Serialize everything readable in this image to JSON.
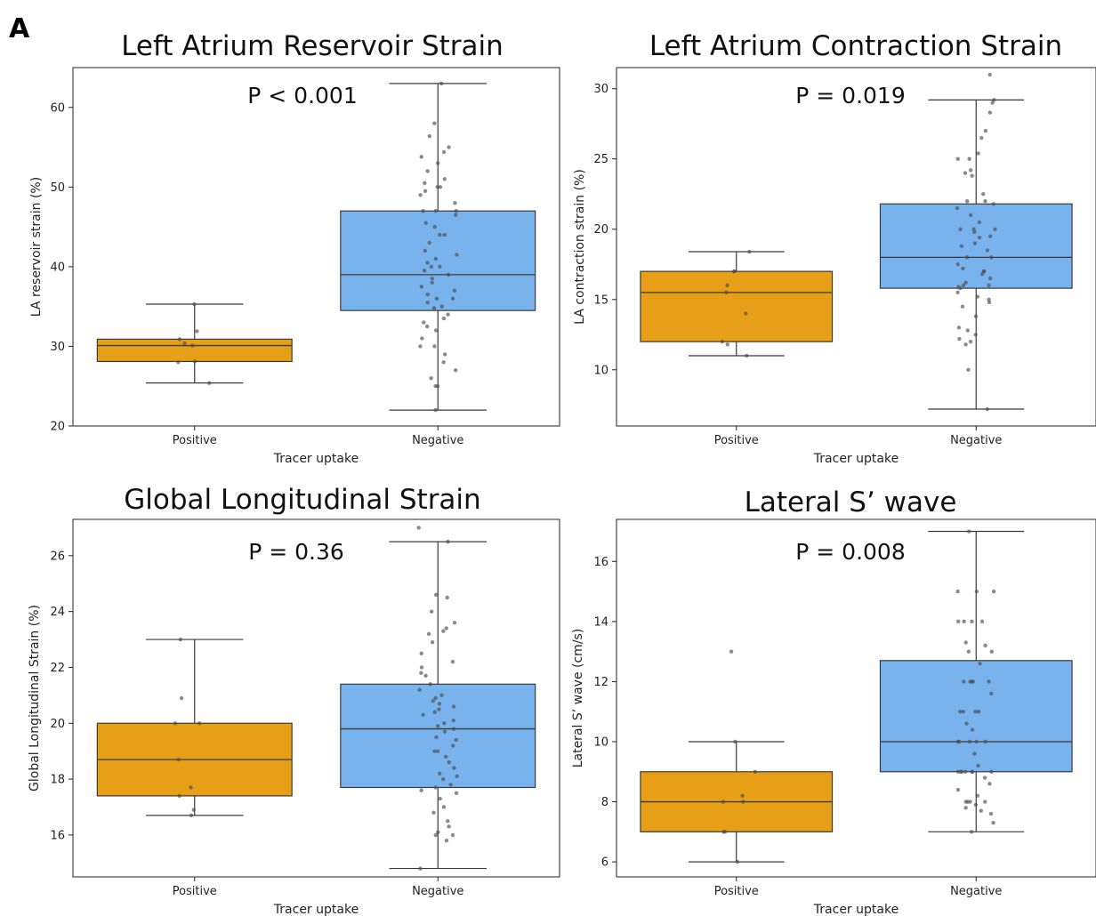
{
  "panel_label": "A",
  "colors": {
    "positive": "#E69F16",
    "negative": "#78B3EE",
    "point": "#4d4d4d",
    "line": "#3a3a3a"
  },
  "chart_data": [
    {
      "type": "box",
      "title": "Left Atrium Reservoir Strain",
      "annotation": "P < 0.001",
      "xlabel": "Tracer uptake",
      "ylabel": "LA reservoir strain (%)",
      "categories": [
        "Positive",
        "Negative"
      ],
      "ylim": [
        20,
        65
      ],
      "yticks": [
        20,
        30,
        40,
        50,
        60
      ],
      "boxes": [
        {
          "category": "Positive",
          "min": 25.4,
          "q1": 28.1,
          "median": 30.1,
          "q3": 30.9,
          "max": 35.3,
          "points": [
            35.3,
            31.9,
            30.9,
            30.4,
            30.1,
            28.1,
            28.0,
            25.4
          ]
        },
        {
          "category": "Negative",
          "min": 22.0,
          "q1": 34.5,
          "median": 39.0,
          "q3": 47.0,
          "max": 63.0,
          "points": [
            63.0,
            58.0,
            56.4,
            55.0,
            54.4,
            53.8,
            53.0,
            52.0,
            51.0,
            50.5,
            50.0,
            50.0,
            49.5,
            49.0,
            48.0,
            47.0,
            47.0,
            47.0,
            46.5,
            45.5,
            45.0,
            44.0,
            44.0,
            43.0,
            42.0,
            41.5,
            41.0,
            40.5,
            40.0,
            40.0,
            39.5,
            39.0,
            38.5,
            38.0,
            37.5,
            37.0,
            36.5,
            36.0,
            36.0,
            35.5,
            35.0,
            34.8,
            34.0,
            33.5,
            33.0,
            32.5,
            32.0,
            31.0,
            30.0,
            30.0,
            29.0,
            28.0,
            27.0,
            26.0,
            25.0,
            25.0,
            22.0
          ]
        }
      ]
    },
    {
      "type": "box",
      "title": "Left Atrium Contraction Strain",
      "annotation": "P = 0.019",
      "xlabel": "Tracer uptake",
      "ylabel": "LA contraction strain (%)",
      "categories": [
        "Positive",
        "Negative"
      ],
      "ylim": [
        6.0,
        31.5
      ],
      "yticks": [
        10,
        15,
        20,
        25,
        30
      ],
      "boxes": [
        {
          "category": "Positive",
          "min": 11.0,
          "q1": 12.0,
          "median": 15.5,
          "q3": 17.0,
          "max": 18.4,
          "points": [
            18.4,
            17.0,
            17.0,
            16.0,
            15.5,
            14.0,
            12.0,
            11.8,
            11.0
          ]
        },
        {
          "category": "Negative",
          "min": 7.2,
          "q1": 15.8,
          "median": 18.0,
          "q3": 21.8,
          "max": 29.2,
          "points": [
            31.0,
            29.2,
            29.0,
            28.3,
            27.0,
            26.5,
            25.4,
            25.0,
            25.0,
            24.2,
            24.0,
            23.8,
            22.5,
            22.0,
            22.0,
            21.8,
            21.5,
            21.0,
            20.5,
            20.0,
            20.0,
            20.0,
            19.8,
            19.5,
            19.4,
            19.0,
            18.8,
            18.5,
            18.0,
            18.0,
            17.5,
            17.2,
            17.0,
            17.0,
            16.8,
            16.5,
            16.2,
            16.0,
            16.0,
            15.9,
            15.8,
            15.5,
            15.2,
            15.0,
            14.8,
            14.5,
            13.8,
            13.0,
            12.8,
            12.5,
            12.2,
            12.0,
            11.8,
            10.0,
            7.2
          ]
        }
      ]
    },
    {
      "type": "box",
      "title": "Global Longitudinal Strain",
      "annotation": "P = 0.36",
      "xlabel": "Tracer uptake",
      "ylabel": "Global Longitudinal Strain (%)",
      "categories": [
        "Positive",
        "Negative"
      ],
      "ylim": [
        14.5,
        27.3
      ],
      "yticks": [
        16,
        18,
        20,
        22,
        24,
        26
      ],
      "boxes": [
        {
          "category": "Positive",
          "min": 16.7,
          "q1": 17.4,
          "median": 18.7,
          "q3": 20.0,
          "max": 23.0,
          "points": [
            23.0,
            20.9,
            20.0,
            20.0,
            18.7,
            17.7,
            17.4,
            16.9,
            16.7
          ]
        },
        {
          "category": "Negative",
          "min": 14.8,
          "q1": 17.7,
          "median": 19.8,
          "q3": 21.4,
          "max": 26.5,
          "points": [
            27.0,
            26.5,
            24.6,
            24.5,
            24.0,
            23.6,
            23.4,
            23.3,
            23.2,
            22.9,
            22.5,
            22.2,
            22.0,
            21.8,
            21.7,
            21.4,
            21.2,
            21.0,
            20.9,
            20.8,
            20.7,
            20.6,
            20.5,
            20.4,
            20.3,
            20.1,
            20.0,
            19.9,
            19.8,
            19.7,
            19.5,
            19.4,
            19.2,
            19.0,
            19.0,
            18.8,
            18.6,
            18.4,
            18.2,
            18.1,
            18.0,
            17.8,
            17.7,
            17.6,
            17.5,
            17.3,
            17.0,
            16.8,
            16.5,
            16.3,
            16.1,
            16.0,
            16.0,
            15.8,
            14.8
          ]
        }
      ]
    },
    {
      "type": "box",
      "title": "Lateral S’ wave",
      "annotation": "P = 0.008",
      "xlabel": "Tracer uptake",
      "ylabel": "Lateral S’ wave (cm/s)",
      "categories": [
        "Positive",
        "Negative"
      ],
      "ylim": [
        5.5,
        17.4
      ],
      "yticks": [
        6,
        8,
        10,
        12,
        14,
        16
      ],
      "boxes": [
        {
          "category": "Positive",
          "min": 6.0,
          "q1": 7.0,
          "median": 8.0,
          "q3": 9.0,
          "max": 10.0,
          "points": [
            13.0,
            10.0,
            9.0,
            8.2,
            8.0,
            8.0,
            7.0,
            7.0,
            6.0
          ]
        },
        {
          "category": "Negative",
          "min": 7.0,
          "q1": 9.0,
          "median": 10.0,
          "q3": 12.7,
          "max": 17.0,
          "points": [
            17.0,
            15.0,
            15.0,
            15.0,
            14.0,
            14.0,
            14.0,
            14.0,
            13.3,
            13.2,
            13.0,
            13.0,
            12.6,
            12.0,
            12.0,
            12.0,
            12.0,
            12.0,
            11.6,
            11.0,
            11.0,
            11.0,
            11.0,
            10.6,
            10.4,
            10.0,
            10.0,
            10.0,
            10.0,
            10.0,
            9.6,
            9.2,
            9.0,
            9.0,
            9.0,
            9.0,
            9.0,
            9.0,
            9.0,
            8.8,
            8.6,
            8.4,
            8.2,
            8.0,
            8.0,
            8.0,
            8.0,
            7.9,
            7.8,
            7.7,
            7.6,
            7.3,
            7.0
          ]
        }
      ]
    }
  ]
}
